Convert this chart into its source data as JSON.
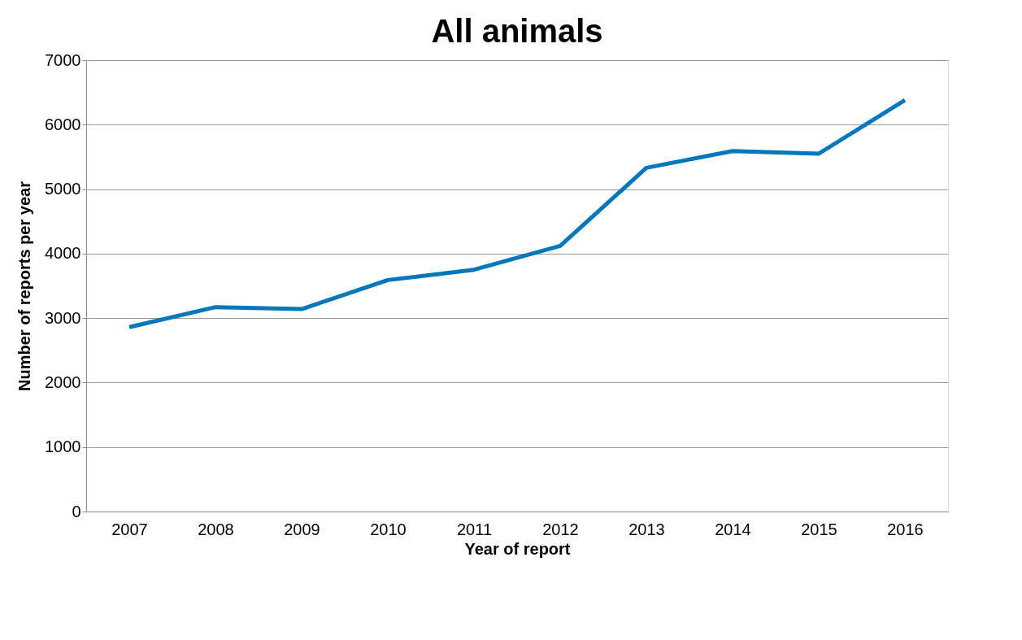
{
  "chart_data": {
    "type": "line",
    "title": "All animals",
    "xlabel": "Year of report",
    "ylabel": "Number of reports per year",
    "categories": [
      "2007",
      "2008",
      "2009",
      "2010",
      "2011",
      "2012",
      "2013",
      "2014",
      "2015",
      "2016"
    ],
    "series": [
      {
        "color": "#0077bb",
        "values": [
          2860,
          3170,
          3140,
          3590,
          3750,
          4120,
          5330,
          5590,
          5550,
          6380
        ]
      }
    ],
    "ylim": [
      0,
      7000
    ],
    "yticks": [
      0,
      1000,
      2000,
      3000,
      4000,
      5000,
      6000,
      7000
    ],
    "grid": "y",
    "marker": "none",
    "line_style": "solid"
  }
}
